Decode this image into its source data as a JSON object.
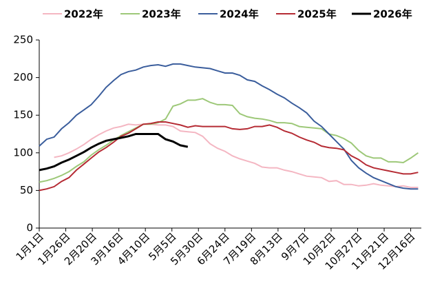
{
  "chart_data": {
    "type": "line",
    "x": [
      0,
      7,
      14,
      21,
      28,
      35,
      42,
      49,
      56,
      63,
      70,
      77,
      84,
      91,
      98,
      105,
      112,
      119,
      126,
      133,
      140,
      147,
      154,
      161,
      168,
      175,
      182,
      189,
      196,
      203,
      210,
      217,
      224,
      231,
      238,
      245,
      252,
      259,
      266,
      273,
      280,
      287,
      294,
      301,
      308,
      315,
      322,
      329,
      336,
      343,
      350,
      357
    ],
    "xlim": [
      0,
      360
    ],
    "xticks": [
      {
        "value": 0,
        "label": "1月1日"
      },
      {
        "value": 25,
        "label": "1月26日"
      },
      {
        "value": 50,
        "label": "2月20日"
      },
      {
        "value": 75,
        "label": "3月16日"
      },
      {
        "value": 100,
        "label": "4月10日"
      },
      {
        "value": 125,
        "label": "5月5日"
      },
      {
        "value": 150,
        "label": "5月30日"
      },
      {
        "value": 175,
        "label": "6月24日"
      },
      {
        "value": 200,
        "label": "7月19日"
      },
      {
        "value": 225,
        "label": "8月13日"
      },
      {
        "value": 250,
        "label": "9月7日"
      },
      {
        "value": 275,
        "label": "10月2日"
      },
      {
        "value": 300,
        "label": "10月27日"
      },
      {
        "value": 325,
        "label": "11月21日"
      },
      {
        "value": 350,
        "label": "12月16日"
      }
    ],
    "ylim": [
      0,
      250
    ],
    "yticks": [
      0,
      50,
      100,
      150,
      200,
      250
    ],
    "grid": false,
    "series": [
      {
        "name": "2022年",
        "color": "#f4b6c2",
        "values": [
          null,
          null,
          94,
          96,
          100,
          105,
          111,
          118,
          124,
          129,
          133,
          135,
          138,
          137,
          138,
          138,
          137,
          137,
          135,
          129,
          128,
          127,
          122,
          112,
          106,
          102,
          96,
          92,
          89,
          86,
          81,
          80,
          80,
          77,
          75,
          72,
          69,
          68,
          67,
          62,
          63,
          58,
          58,
          56,
          57,
          59,
          57,
          56,
          55,
          56,
          54,
          54
        ]
      },
      {
        "name": "2023年",
        "color": "#9dc878",
        "values": [
          61,
          63,
          66,
          70,
          75,
          82,
          88,
          97,
          104,
          110,
          117,
          123,
          128,
          133,
          138,
          138,
          140,
          145,
          162,
          165,
          170,
          170,
          172,
          167,
          164,
          164,
          163,
          152,
          148,
          146,
          145,
          143,
          140,
          140,
          139,
          135,
          134,
          133,
          132,
          125,
          123,
          119,
          113,
          103,
          96,
          93,
          93,
          88,
          88,
          87,
          93,
          100
        ]
      },
      {
        "name": "2024年",
        "color": "#3a5d9c",
        "values": [
          109,
          118,
          121,
          132,
          140,
          150,
          157,
          164,
          175,
          187,
          196,
          204,
          208,
          210,
          214,
          216,
          217,
          215,
          218,
          218,
          216,
          214,
          213,
          212,
          209,
          206,
          206,
          203,
          197,
          195,
          189,
          184,
          178,
          173,
          166,
          160,
          153,
          142,
          135,
          125,
          115,
          105,
          90,
          80,
          73,
          67,
          63,
          59,
          55,
          53,
          52,
          52
        ]
      },
      {
        "name": "2025年",
        "color": "#b52a33",
        "values": [
          50,
          52,
          55,
          62,
          67,
          77,
          85,
          93,
          101,
          107,
          114,
          122,
          126,
          132,
          138,
          139,
          141,
          141,
          139,
          137,
          134,
          136,
          135,
          135,
          135,
          135,
          132,
          131,
          132,
          135,
          135,
          137,
          134,
          129,
          126,
          121,
          117,
          114,
          109,
          107,
          106,
          104,
          96,
          91,
          84,
          80,
          78,
          76,
          74,
          72,
          72,
          74
        ]
      },
      {
        "name": "2026年",
        "color": "#000000",
        "values": [
          77,
          79,
          82,
          87,
          91,
          96,
          101,
          107,
          112,
          116,
          118,
          120,
          122,
          125,
          125,
          125,
          125,
          118,
          115,
          110,
          108,
          null,
          null,
          null,
          null,
          null,
          null,
          null,
          null,
          null,
          null,
          null,
          null,
          null,
          null,
          null,
          null,
          null,
          null,
          null,
          null,
          null,
          null,
          null,
          null,
          null,
          null,
          null,
          null,
          null,
          null,
          null
        ]
      }
    ]
  }
}
